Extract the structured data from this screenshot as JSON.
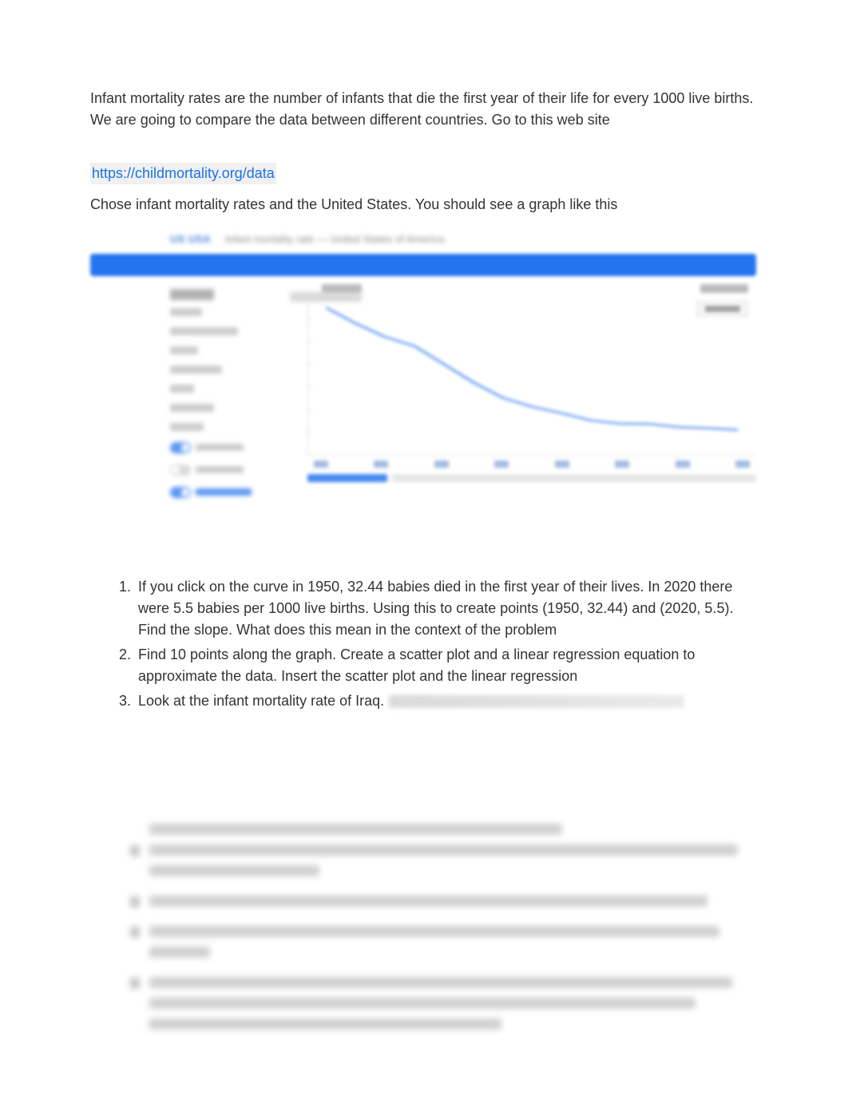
{
  "intro": "Infant mortality rates are the number of infants that die the first year of their life for every 1000 live births.  We are going to compare the data between different countries.  Go to this web site",
  "link_text": "https://childmortality.org/data",
  "instruction": "Chose infant mortality rates and the United States.  You should see a graph like this",
  "chart": {
    "country": "US USA",
    "subtitle_hint": "Infant mortality rate — United States of America",
    "type": "line",
    "legend_hint": "Est.",
    "xlim": [
      1950,
      2020
    ],
    "ylim": [
      0,
      35
    ],
    "xtick_step": 10,
    "ytick_step": 5,
    "x_values": [
      1950,
      1955,
      1960,
      1965,
      1970,
      1975,
      1980,
      1985,
      1990,
      1995,
      2000,
      2005,
      2010,
      2015,
      2020
    ],
    "y_values": [
      32.44,
      29.0,
      26.0,
      24.0,
      20.0,
      16.0,
      12.6,
      10.6,
      9.2,
      7.6,
      6.9,
      6.8,
      6.1,
      5.9,
      5.5
    ],
    "line_color": "#2474f0",
    "line_width": 2,
    "background_color": "#ffffff",
    "grid_color": "#e8e8e8",
    "header_bar_color": "#2474f0",
    "xtick_labels": [
      "1950",
      "1960",
      "1970",
      "1980",
      "1990",
      "2000",
      "2010",
      "2020"
    ]
  },
  "questions": {
    "q1": " If you click on the curve in 1950, 32.44 babies died in the first year of their lives.  In 2020 there were 5.5 babies per 1000 live births.  Using this to create points (1950, 32.44) and (2020, 5.5).  Find the slope.  What does this mean in the context of the problem",
    "q2": "Find 10 points along the graph. Create a scatter plot and a linear regression equation to approximate the data.  Insert the scatter plot and the linear regression",
    "q3": "Look at the infant mortality rate of Iraq."
  },
  "blur_widths": {
    "l0": "66%",
    "l1a": "97%",
    "l1b": "28%",
    "l2": "92%",
    "l3a": "94%",
    "l3b": "10%",
    "l4a": "96%",
    "l4b": "90%",
    "l4c": "58%"
  }
}
